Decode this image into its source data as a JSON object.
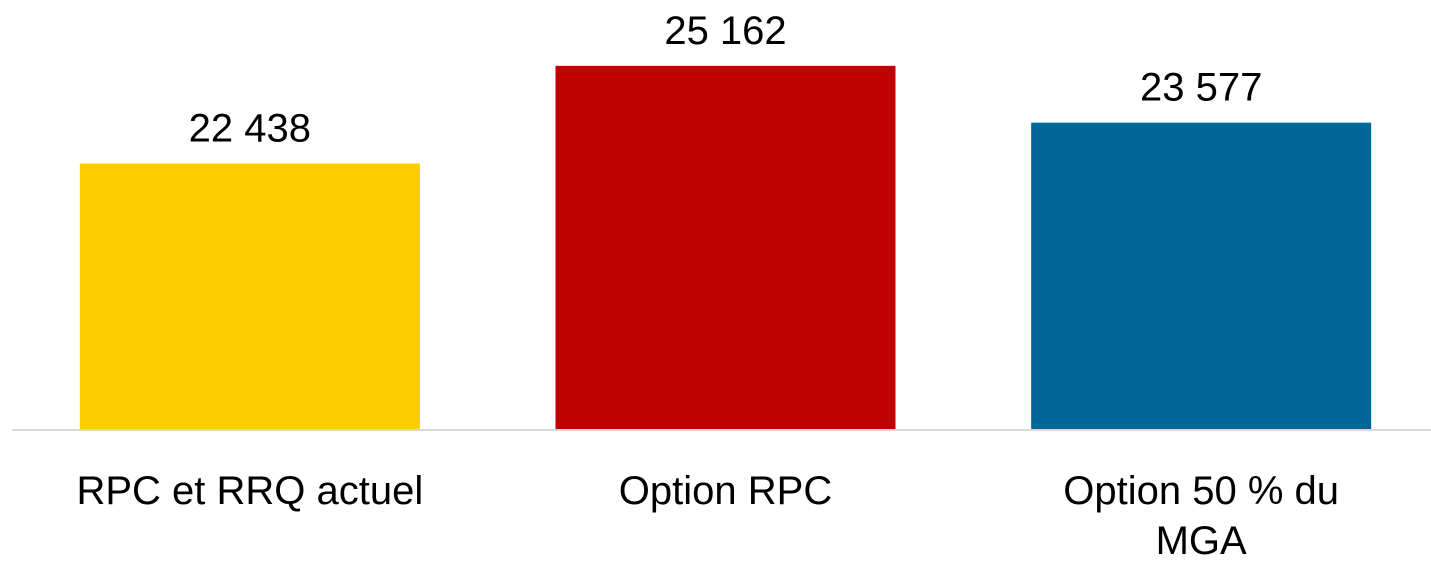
{
  "chart_data": {
    "type": "bar",
    "categories": [
      "RPC et RRQ actuel",
      "Option RPC",
      "Option 50 % du MGA"
    ],
    "values": [
      22438,
      25162,
      23577
    ],
    "value_labels": [
      "22 438",
      "25 162",
      "23 577"
    ],
    "colors": [
      "#ffcc00",
      "#c00000",
      "#006699"
    ],
    "ylim": [
      15000,
      27000
    ]
  }
}
